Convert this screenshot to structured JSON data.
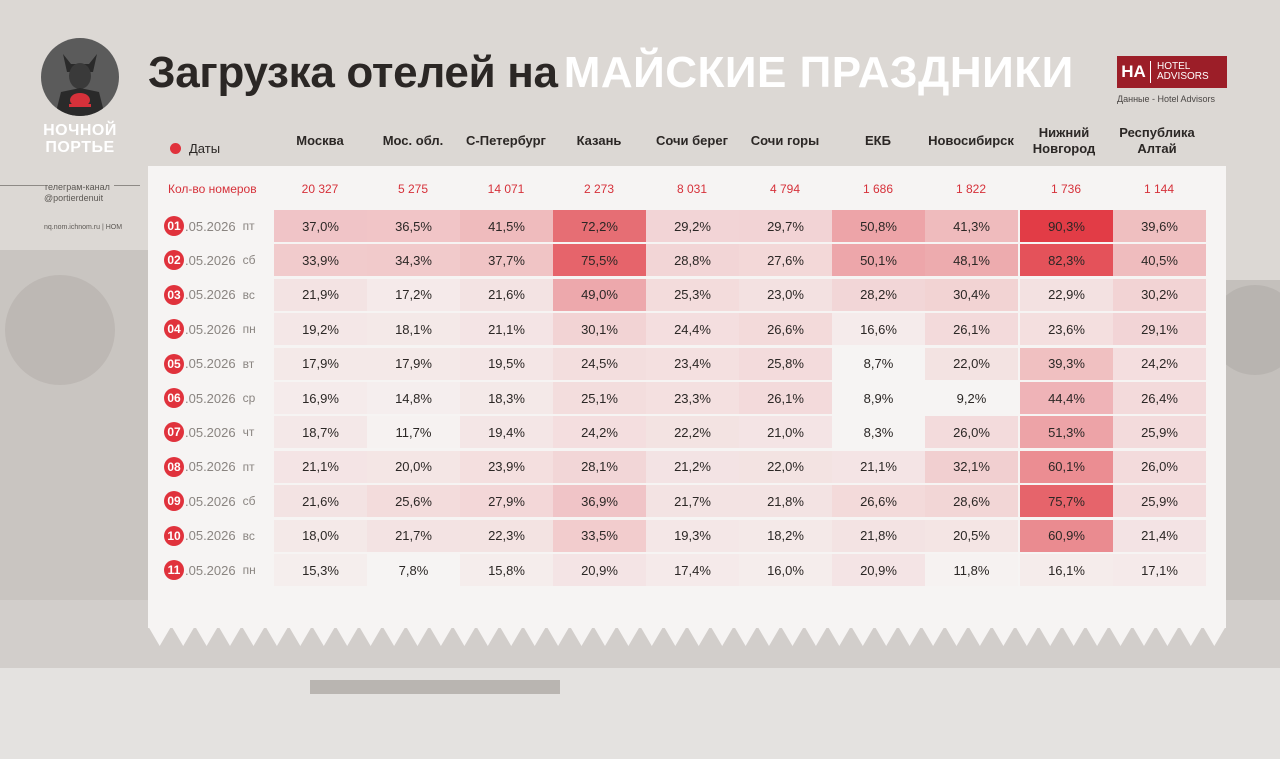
{
  "logo": {
    "line1": "НОЧНОЙ",
    "line2": "ПОРТЬЕ"
  },
  "sidebar": {
    "telegram_line1": "телеграм-канал",
    "telegram_line2": "@portierdenuit",
    "site": "nq.nom.ichnom.ru | НОМ"
  },
  "title": {
    "main": "Загрузка отелей на",
    "highlight": "МАЙСКИЕ ПРАЗДНИКИ"
  },
  "brand": {
    "mark": "НА",
    "name_line1": "HOTEL",
    "name_line2": "ADVISORS",
    "source": "Данные - Hotel Advisors"
  },
  "colors": {
    "accent": "#e0323c",
    "heat_max": "#e0323c",
    "panel": "#f6f4f3"
  },
  "chart_data": {
    "type": "table",
    "dates_header": "Даты",
    "rooms_label": "Кол-во номеров",
    "columns": [
      "Москва",
      "Мос. обл.",
      "С-Петербург",
      "Казань",
      "Сочи берег",
      "Сочи горы",
      "ЕКБ",
      "Новосибирск",
      "Нижний Новгород",
      "Республика Алтай"
    ],
    "rooms": [
      "20 327",
      "5 275",
      "14 071",
      "2 273",
      "8 031",
      "4 794",
      "1 686",
      "1 822",
      "1 736",
      "1 144"
    ],
    "rows": [
      {
        "day": "01",
        "date": ".05.2026",
        "weekday": "пт",
        "values": [
          "37,0%",
          "36,5%",
          "41,5%",
          "72,2%",
          "29,2%",
          "29,7%",
          "50,8%",
          "41,3%",
          "90,3%",
          "39,6%"
        ]
      },
      {
        "day": "02",
        "date": ".05.2026",
        "weekday": "сб",
        "values": [
          "33,9%",
          "34,3%",
          "37,7%",
          "75,5%",
          "28,8%",
          "27,6%",
          "50,1%",
          "48,1%",
          "82,3%",
          "40,5%"
        ]
      },
      {
        "day": "03",
        "date": ".05.2026",
        "weekday": "вс",
        "values": [
          "21,9%",
          "17,2%",
          "21,6%",
          "49,0%",
          "25,3%",
          "23,0%",
          "28,2%",
          "30,4%",
          "22,9%",
          "30,2%"
        ]
      },
      {
        "day": "04",
        "date": ".05.2026",
        "weekday": "пн",
        "values": [
          "19,2%",
          "18,1%",
          "21,1%",
          "30,1%",
          "24,4%",
          "26,6%",
          "16,6%",
          "26,1%",
          "23,6%",
          "29,1%"
        ]
      },
      {
        "day": "05",
        "date": ".05.2026",
        "weekday": "вт",
        "values": [
          "17,9%",
          "17,9%",
          "19,5%",
          "24,5%",
          "23,4%",
          "25,8%",
          "8,7%",
          "22,0%",
          "39,3%",
          "24,2%"
        ]
      },
      {
        "day": "06",
        "date": ".05.2026",
        "weekday": "ср",
        "values": [
          "16,9%",
          "14,8%",
          "18,3%",
          "25,1%",
          "23,3%",
          "26,1%",
          "8,9%",
          "9,2%",
          "44,4%",
          "26,4%"
        ]
      },
      {
        "day": "07",
        "date": ".05.2026",
        "weekday": "чт",
        "values": [
          "18,7%",
          "11,7%",
          "19,4%",
          "24,2%",
          "22,2%",
          "21,0%",
          "8,3%",
          "26,0%",
          "51,3%",
          "25,9%"
        ]
      },
      {
        "day": "08",
        "date": ".05.2026",
        "weekday": "пт",
        "values": [
          "21,1%",
          "20,0%",
          "23,9%",
          "28,1%",
          "21,2%",
          "22,0%",
          "21,1%",
          "32,1%",
          "60,1%",
          "26,0%"
        ]
      },
      {
        "day": "09",
        "date": ".05.2026",
        "weekday": "сб",
        "values": [
          "21,6%",
          "25,6%",
          "27,9%",
          "36,9%",
          "21,7%",
          "21,8%",
          "26,6%",
          "28,6%",
          "75,7%",
          "25,9%"
        ]
      },
      {
        "day": "10",
        "date": ".05.2026",
        "weekday": "вс",
        "values": [
          "18,0%",
          "21,7%",
          "22,3%",
          "33,5%",
          "19,3%",
          "18,2%",
          "21,8%",
          "20,5%",
          "60,9%",
          "21,4%"
        ]
      },
      {
        "day": "11",
        "date": ".05.2026",
        "weekday": "пн",
        "values": [
          "15,3%",
          "7,8%",
          "15,8%",
          "20,9%",
          "17,4%",
          "16,0%",
          "20,9%",
          "11,8%",
          "16,1%",
          "17,1%"
        ]
      }
    ]
  }
}
